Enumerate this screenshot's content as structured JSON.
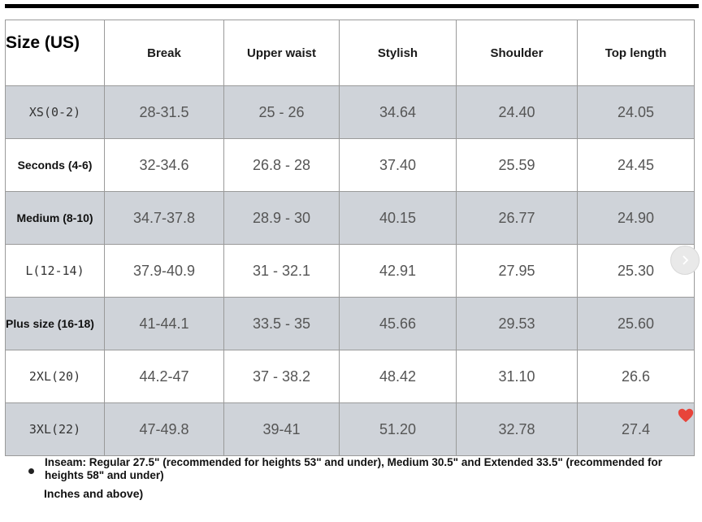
{
  "table": {
    "headers": [
      "Size (US)",
      "Break",
      "Upper waist",
      "Stylish",
      "Shoulder",
      "Top length"
    ],
    "rows": [
      {
        "size": "XS(0-2)",
        "break": "28-31.5",
        "upper_waist": "25 - 26",
        "stylish": "34.64",
        "shoulder": "24.40",
        "top_length": "24.05"
      },
      {
        "size": "Seconds (4-6)",
        "break": "32-34.6",
        "upper_waist": "26.8 - 28",
        "stylish": "37.40",
        "shoulder": "25.59",
        "top_length": "24.45"
      },
      {
        "size": "Medium (8-10)",
        "break": "34.7-37.8",
        "upper_waist": "28.9 - 30",
        "stylish": "40.15",
        "shoulder": "26.77",
        "top_length": "24.90"
      },
      {
        "size": "L(12-14)",
        "break": "37.9-40.9",
        "upper_waist": "31 - 32.1",
        "stylish": "42.91",
        "shoulder": "27.95",
        "top_length": "25.30"
      },
      {
        "size": "Plus size (16-18)",
        "break": "41-44.1",
        "upper_waist": "33.5 - 35",
        "stylish": "45.66",
        "shoulder": "29.53",
        "top_length": "25.60"
      },
      {
        "size": "2XL(20)",
        "break": "44.2-47",
        "upper_waist": "37 - 38.2",
        "stylish": "48.42",
        "shoulder": "31.10",
        "top_length": "26.6"
      },
      {
        "size": "3XL(22)",
        "break": "47-49.8",
        "upper_waist": "39-41",
        "stylish": "51.20",
        "shoulder": "32.78",
        "top_length": "27.4"
      }
    ]
  },
  "controls": {
    "next_icon": "chevron-right-icon",
    "favorite_icon": "heart-icon"
  },
  "notes": {
    "inseam": "Inseam: Regular 27.5\" (recommended for heights 53\" and under), Medium 30.5\" and Extended 33.5\" (recommended for heights 58\" and under)",
    "inches": "Inches and above)"
  },
  "colors": {
    "row_shade": "#cfd3d9",
    "heart": "#e8443a"
  }
}
